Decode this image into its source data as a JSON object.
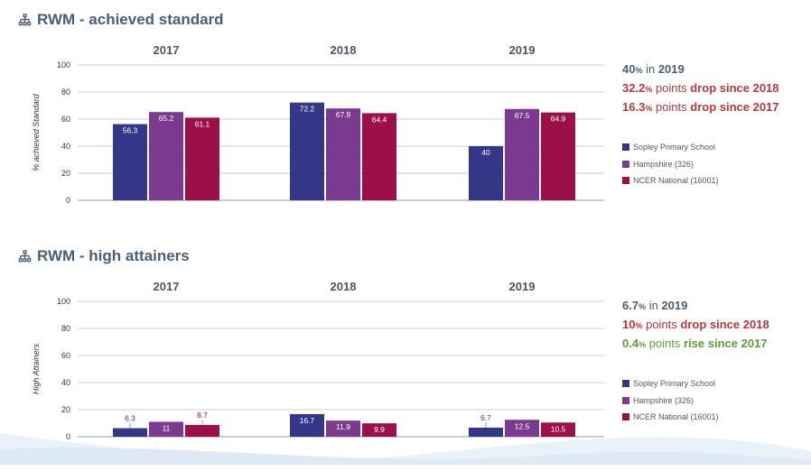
{
  "colors": {
    "title": "#4a5e74",
    "school": "#343787",
    "hampshire": "#7b398f",
    "national": "#9b1048",
    "bad": "#b3393d",
    "good": "#5f9a3b",
    "neutral": "#4a5e74"
  },
  "sections": [
    {
      "title": "RWM - achieved standard",
      "summary": [
        {
          "value": "40",
          "unit": "%",
          "mid": " in ",
          "tail": "2019",
          "tail_bold": true,
          "color": "neutral"
        },
        {
          "value": "32.2",
          "unit": "%",
          "mid": " points ",
          "tail": "drop since 2018",
          "tail_bold": true,
          "color": "bad"
        },
        {
          "value": "16.3",
          "unit": "%",
          "mid": " points ",
          "tail": "drop since 2017",
          "tail_bold": true,
          "color": "bad"
        }
      ],
      "legend": [
        "Sopley Primary School",
        "Hampshire (326)",
        "NCER National (16001)"
      ]
    },
    {
      "title": "RWM - high attainers",
      "summary": [
        {
          "value": "6.7",
          "unit": "%",
          "mid": " in ",
          "tail": "2019",
          "tail_bold": true,
          "color": "neutral"
        },
        {
          "value": "10",
          "unit": "%",
          "mid": " points ",
          "tail": "drop since 2018",
          "tail_bold": true,
          "color": "bad"
        },
        {
          "value": "0.4",
          "unit": "%",
          "mid": " points ",
          "tail": "rise since 2017",
          "tail_bold": true,
          "color": "good"
        }
      ],
      "legend": [
        "Sopley Primary School",
        "Hampshire (326)",
        "NCER National (16001)"
      ]
    }
  ],
  "chart_data": [
    {
      "type": "bar",
      "categories": [
        "2017",
        "2018",
        "2019"
      ],
      "series": [
        {
          "name": "Sopley Primary School",
          "values": [
            56.3,
            72.2,
            40
          ]
        },
        {
          "name": "Hampshire (326)",
          "values": [
            65.2,
            67.9,
            67.5
          ]
        },
        {
          "name": "NCER National (16001)",
          "values": [
            61.1,
            64.4,
            64.9
          ]
        }
      ],
      "ylabel": "% achieved Standard",
      "ylim": [
        0,
        100
      ],
      "yticks": [
        0,
        20,
        40,
        60,
        80,
        100
      ],
      "grid": true,
      "legend": "right"
    },
    {
      "type": "bar",
      "categories": [
        "2017",
        "2018",
        "2019"
      ],
      "series": [
        {
          "name": "Sopley Primary School",
          "values": [
            6.3,
            16.7,
            6.7
          ]
        },
        {
          "name": "Hampshire (326)",
          "values": [
            11,
            11.9,
            12.5
          ]
        },
        {
          "name": "NCER National (16001)",
          "values": [
            8.7,
            9.9,
            10.5
          ]
        }
      ],
      "ylabel": "High Attainers",
      "ylim": [
        0,
        100
      ],
      "yticks": [
        0,
        20,
        40,
        60,
        80,
        100
      ],
      "grid": true,
      "legend": "right"
    }
  ]
}
